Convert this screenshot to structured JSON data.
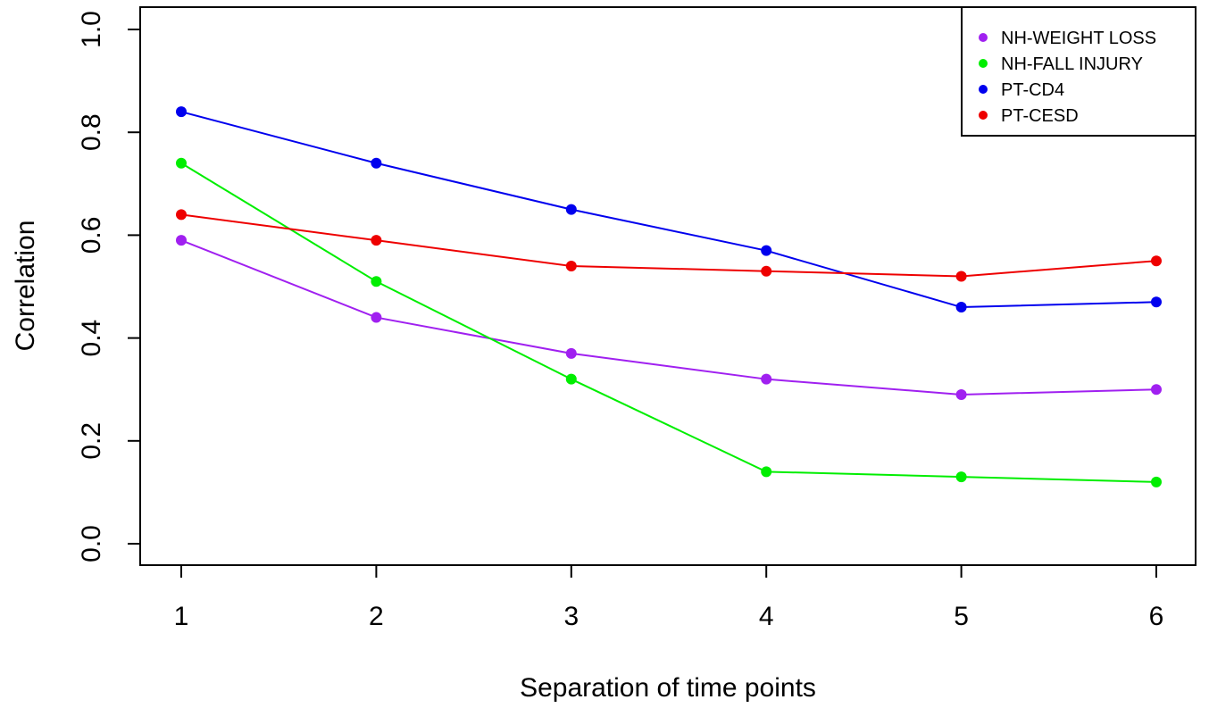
{
  "chart_data": {
    "type": "line",
    "title": "",
    "xlabel": "Separation of time points",
    "ylabel": "Correlation",
    "x": [
      1,
      2,
      3,
      4,
      5,
      6
    ],
    "xticks": [
      "1",
      "2",
      "3",
      "4",
      "5",
      "6"
    ],
    "yticks": [
      "0.0",
      "0.2",
      "0.4",
      "0.6",
      "0.8",
      "1.0"
    ],
    "xlim": [
      1,
      6
    ],
    "ylim": [
      0,
      1
    ],
    "grid": false,
    "legend_position": "top-right",
    "series": [
      {
        "name": "NH-WEIGHT LOSS",
        "color": "#a020f0",
        "values": [
          0.59,
          0.44,
          0.37,
          0.32,
          0.29,
          0.3
        ]
      },
      {
        "name": "NH-FALL INJURY",
        "color": "#00ee00",
        "values": [
          0.74,
          0.51,
          0.32,
          0.14,
          0.13,
          0.12
        ]
      },
      {
        "name": "PT-CD4",
        "color": "#0000ee",
        "values": [
          0.84,
          0.74,
          0.65,
          0.57,
          0.46,
          0.47
        ]
      },
      {
        "name": "PT-CESD",
        "color": "#ee0000",
        "values": [
          0.64,
          0.59,
          0.54,
          0.53,
          0.52,
          0.55
        ]
      }
    ]
  }
}
